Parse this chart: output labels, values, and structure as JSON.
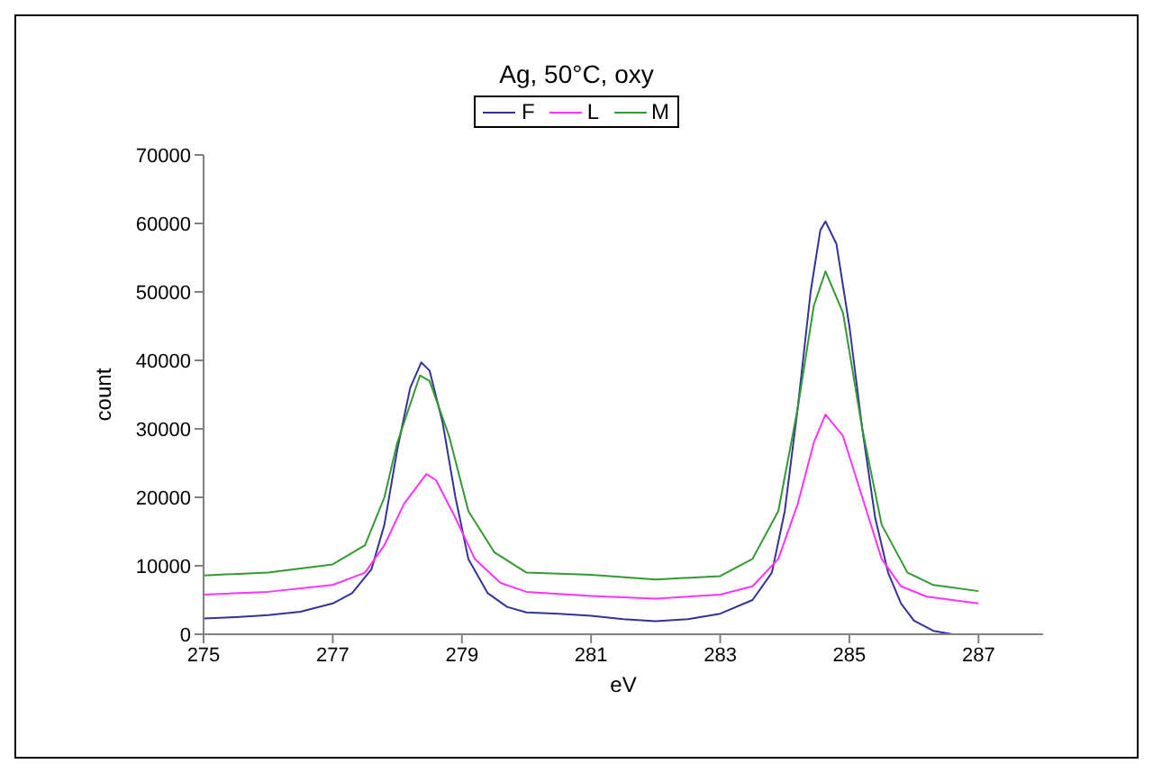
{
  "chart_data": {
    "type": "line",
    "title": "Ag, 50°C, oxy",
    "xlabel": "eV",
    "ylabel": "count",
    "xlim": [
      275,
      288
    ],
    "xticks": [
      275,
      277,
      279,
      281,
      283,
      285,
      287
    ],
    "ylim": [
      0,
      70000
    ],
    "yticks": [
      0,
      10000,
      20000,
      30000,
      40000,
      50000,
      60000,
      70000
    ],
    "grid": false,
    "legend": "top",
    "marker": "none",
    "line_style": "solid",
    "series": [
      {
        "name": "F",
        "color": "#333399",
        "x": [
          275,
          275.5,
          276,
          276.5,
          277,
          277.3,
          277.6,
          277.8,
          278,
          278.2,
          278.37,
          278.5,
          278.7,
          278.9,
          279.1,
          279.4,
          279.7,
          280,
          280.5,
          281,
          281.5,
          282,
          282.5,
          283,
          283.5,
          283.8,
          284,
          284.2,
          284.4,
          284.55,
          284.63,
          284.8,
          285,
          285.2,
          285.4,
          285.6,
          285.8,
          286,
          286.3,
          286.6,
          287
        ],
        "values": [
          2300,
          2500,
          2800,
          3300,
          4500,
          6000,
          9500,
          16000,
          27000,
          36000,
          39700,
          38500,
          31000,
          20000,
          11000,
          6000,
          4000,
          3200,
          3000,
          2700,
          2200,
          1900,
          2200,
          3000,
          5000,
          9000,
          18000,
          33000,
          50000,
          59000,
          60300,
          57000,
          45000,
          30000,
          17000,
          9000,
          4500,
          2000,
          500,
          0,
          0
        ]
      },
      {
        "name": "L",
        "color": "#ff33ff",
        "x": [
          275,
          276,
          277,
          277.5,
          277.8,
          278.1,
          278.45,
          278.6,
          278.9,
          279.2,
          279.6,
          280,
          281,
          282,
          283,
          283.5,
          283.9,
          284.2,
          284.45,
          284.63,
          284.9,
          285.2,
          285.5,
          285.8,
          286.2,
          287
        ],
        "values": [
          5800,
          6200,
          7200,
          9000,
          13000,
          19000,
          23400,
          22500,
          17000,
          11000,
          7500,
          6200,
          5600,
          5200,
          5800,
          7000,
          11000,
          19000,
          28000,
          32100,
          29000,
          20000,
          11000,
          7000,
          5500,
          4500
        ]
      },
      {
        "name": "M",
        "color": "#339933",
        "x": [
          275,
          276,
          277,
          277.5,
          277.8,
          278,
          278.35,
          278.5,
          278.8,
          279.1,
          279.5,
          280,
          281,
          282,
          283,
          283.5,
          283.9,
          284.2,
          284.45,
          284.63,
          284.9,
          285.2,
          285.5,
          285.9,
          286.3,
          287
        ],
        "values": [
          8600,
          9000,
          10200,
          13000,
          20000,
          28000,
          37800,
          37000,
          29000,
          18000,
          12000,
          9000,
          8700,
          8000,
          8500,
          11000,
          18000,
          33000,
          48000,
          53000,
          47000,
          30000,
          16000,
          9000,
          7200,
          6300
        ]
      }
    ]
  }
}
